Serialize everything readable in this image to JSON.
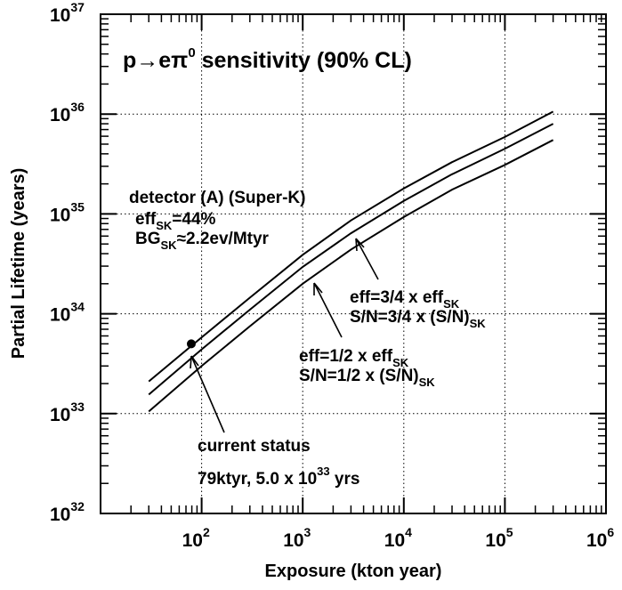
{
  "chart_data": {
    "type": "line",
    "title": "p→eπ",
    "title_sup": "0",
    "title_rest": " sensitivity (90% CL)",
    "xlabel": "Exposure (kton year)",
    "ylabel": "Partial Lifetime (years)",
    "x_scale": "log",
    "y_scale": "log",
    "xlim": [
      10,
      1000000
    ],
    "ylim": [
      1e+32,
      1e+37
    ],
    "grid": true,
    "x_ticks": [
      {
        "base": "10",
        "exp": "2",
        "value": 100
      },
      {
        "base": "10",
        "exp": "3",
        "value": 1000
      },
      {
        "base": "10",
        "exp": "4",
        "value": 10000
      },
      {
        "base": "10",
        "exp": "5",
        "value": 100000
      },
      {
        "base": "10",
        "exp": "6",
        "value": 1000000
      }
    ],
    "y_ticks": [
      {
        "base": "10",
        "exp": "32",
        "value": 1e+32
      },
      {
        "base": "10",
        "exp": "33",
        "value": 1e+33
      },
      {
        "base": "10",
        "exp": "34",
        "value": 1e+34
      },
      {
        "base": "10",
        "exp": "35",
        "value": 1e+35
      },
      {
        "base": "10",
        "exp": "36",
        "value": 1e+36
      },
      {
        "base": "10",
        "exp": "37",
        "value": 1e+37
      }
    ],
    "series": [
      {
        "id": "detector-a",
        "points": [
          [
            30,
            2.1e+33
          ],
          [
            100,
            5.8e+33
          ],
          [
            300,
            1.45e+34
          ],
          [
            1000,
            3.9e+34
          ],
          [
            3000,
            8.6e+34
          ],
          [
            10000,
            1.8e+35
          ],
          [
            30000,
            3.3e+35
          ],
          [
            100000,
            5.9e+35
          ],
          [
            300000,
            1.06e+36
          ]
        ]
      },
      {
        "id": "eff-3-4",
        "points": [
          [
            30,
            1.55e+33
          ],
          [
            100,
            4.4e+33
          ],
          [
            300,
            1.1e+34
          ],
          [
            1000,
            2.95e+34
          ],
          [
            3000,
            6.4e+34
          ],
          [
            10000,
            1.35e+35
          ],
          [
            30000,
            2.5e+35
          ],
          [
            100000,
            4.5e+35
          ],
          [
            300000,
            8e+35
          ]
        ]
      },
      {
        "id": "eff-1-2",
        "points": [
          [
            30,
            1.05e+33
          ],
          [
            100,
            3e+33
          ],
          [
            300,
            7.5e+33
          ],
          [
            1000,
            2e+34
          ],
          [
            3000,
            4.4e+34
          ],
          [
            10000,
            9.3e+34
          ],
          [
            30000,
            1.75e+35
          ],
          [
            100000,
            3.1e+35
          ],
          [
            300000,
            5.5e+35
          ]
        ]
      }
    ],
    "current_point": {
      "x": 79,
      "y": 5e+33
    },
    "annotations": {
      "detector": {
        "line1": "detector (A) (Super-K)",
        "eff_pre": "eff",
        "eff_sub": "SK",
        "eff_post": "=44%",
        "bg_pre": "BG",
        "bg_sub": "SK",
        "bg_post": "≈2.2ev/Mtyr"
      },
      "eff34": {
        "l1_pre": "eff=3/4 x eff",
        "l1_sub": "SK",
        "l2_pre": "S/N=3/4 x (S/N)",
        "l2_sub": "SK"
      },
      "eff12": {
        "l1_pre": "eff=1/2 x eff",
        "l1_sub": "SK",
        "l2_pre": "S/N=1/2 x (S/N)",
        "l2_sub": "SK"
      },
      "current": {
        "line1": "current status",
        "l2_pre": "79ktyr, 5.0 x 10",
        "l2_sup": "33",
        "l2_post": " yrs"
      }
    }
  }
}
